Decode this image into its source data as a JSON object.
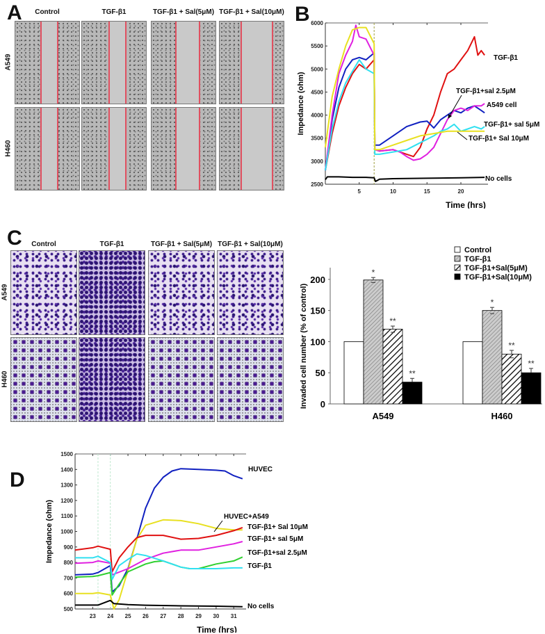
{
  "panels": {
    "a": {
      "letter": "A",
      "columns": [
        "Control",
        "TGF-β1",
        "TGF-β1 + Sal(5μM)",
        "TGF-β1 + Sal(10μM)"
      ],
      "rows": [
        "A549",
        "H460"
      ]
    },
    "b": {
      "letter": "B"
    },
    "c": {
      "letter": "C",
      "columns": [
        "Control",
        "TGF-β1",
        "TGF-β1 + Sal(5μM)",
        "TGF-β1 + Sal(10μM)"
      ],
      "rows": [
        "A549",
        "H460"
      ]
    },
    "d": {
      "letter": "D"
    }
  },
  "colors": {
    "red": "#e01010",
    "blue": "#1020c0",
    "magenta": "#e020e0",
    "cyan": "#30e0f0",
    "yellow": "#e8e020",
    "green": "#30d030",
    "black": "#000000"
  },
  "chart_data": [
    {
      "id": "B",
      "type": "line",
      "xlabel": "Time (hrs)",
      "ylabel": "Impedance (ohm)",
      "xlim": [
        0,
        24
      ],
      "ylim": [
        2500,
        6000
      ],
      "xticks": [
        5,
        10,
        15,
        20
      ],
      "yticks": [
        2500,
        3000,
        3500,
        4000,
        4500,
        5000,
        5500,
        6000
      ],
      "series": [
        {
          "name": "TGF-β1",
          "color": "#e01010",
          "x": [
            0,
            1,
            2,
            3,
            4,
            5,
            6,
            7.2,
            7.3,
            8,
            10,
            12,
            13,
            14,
            15,
            16,
            17,
            18,
            19,
            20,
            21,
            22,
            22.5,
            23,
            23.5
          ],
          "y": [
            2800,
            3600,
            4200,
            4600,
            4900,
            5100,
            5000,
            5200,
            3250,
            3220,
            3250,
            3150,
            3100,
            3300,
            3700,
            4000,
            4500,
            4900,
            5000,
            5200,
            5400,
            5700,
            5300,
            5400,
            5300
          ]
        },
        {
          "name": "TGF-β1+sal 2.5μM",
          "color": "#1020c0",
          "x": [
            0,
            1,
            2,
            3,
            4,
            5,
            6,
            7.2,
            7.3,
            8,
            10,
            12,
            14,
            15,
            15.8,
            16,
            17,
            18,
            19,
            20,
            21,
            22,
            23,
            23.5
          ],
          "y": [
            2800,
            3900,
            4600,
            5000,
            5200,
            5250,
            5200,
            5350,
            3350,
            3350,
            3550,
            3750,
            3850,
            3870,
            3750,
            3720,
            3900,
            4000,
            4100,
            4050,
            4150,
            4200,
            4100,
            4050
          ]
        },
        {
          "name": "A549 cell",
          "color": "#e020e0",
          "x": [
            0,
            1,
            2,
            3,
            4,
            4.5,
            5,
            6,
            7.2,
            7.3,
            8,
            10,
            11,
            12,
            13,
            14,
            15,
            16,
            17,
            18,
            19,
            20,
            21,
            22,
            23,
            23.5
          ],
          "y": [
            2800,
            4000,
            4900,
            5300,
            5600,
            5950,
            5700,
            5650,
            5300,
            3250,
            3220,
            3250,
            3200,
            3100,
            3020,
            3050,
            3150,
            3300,
            3600,
            3900,
            4100,
            4150,
            4100,
            4200,
            4200,
            4250
          ]
        },
        {
          "name": "TGF-β1+ sal 5μM",
          "color": "#30e0f0",
          "x": [
            0,
            1,
            2,
            3,
            4,
            5,
            6,
            7.2,
            7.3,
            8,
            10,
            12,
            14,
            16,
            17,
            18,
            19,
            20,
            21,
            22,
            23,
            23.5
          ],
          "y": [
            2800,
            3700,
            4300,
            4700,
            4950,
            5200,
            5000,
            4900,
            3150,
            3150,
            3200,
            3250,
            3400,
            3550,
            3650,
            3700,
            3800,
            3650,
            3700,
            3750,
            3700,
            3750
          ]
        },
        {
          "name": "TGF-β1+ Sal 10μM",
          "color": "#e8e020",
          "x": [
            0,
            1,
            2,
            3,
            4,
            5,
            6,
            7.2,
            7.3,
            8,
            10,
            12,
            14,
            16,
            18,
            20,
            22,
            23.5
          ],
          "y": [
            3300,
            4400,
            5000,
            5500,
            5850,
            5900,
            5900,
            5550,
            3250,
            3250,
            3350,
            3450,
            3550,
            3600,
            3650,
            3650,
            3650,
            3650
          ]
        },
        {
          "name": "No cells",
          "color": "#000000",
          "x": [
            0,
            0.3,
            2,
            4,
            6,
            7.2,
            7.4,
            8,
            10,
            15,
            20,
            23.5
          ],
          "y": [
            2600,
            2660,
            2660,
            2650,
            2650,
            2640,
            2560,
            2610,
            2620,
            2630,
            2640,
            2650
          ]
        }
      ],
      "annotations": [
        "TGF-β1",
        "TGF-β1+sal 2.5μM",
        "A549 cell",
        "TGF-β1+ sal 5μM",
        "TGF-β1+ Sal 10μM",
        "No cells"
      ]
    },
    {
      "id": "C",
      "type": "bar",
      "ylabel": "Invaded cell number (% of control)",
      "ylim": [
        0,
        230
      ],
      "yticks": [
        0,
        50,
        100,
        150,
        200
      ],
      "categories": [
        "A549",
        "H460"
      ],
      "legend": "top-right",
      "series": [
        {
          "name": "Control",
          "values": [
            100,
            100
          ],
          "errors": [
            0,
            0
          ],
          "sig": [
            "",
            ""
          ]
        },
        {
          "name": "TGF-β1",
          "values": [
            199,
            150
          ],
          "errors": [
            4,
            5
          ],
          "sig": [
            "*",
            "*"
          ]
        },
        {
          "name": "TGF-β1+Sal(5μM)",
          "values": [
            120,
            80
          ],
          "errors": [
            5,
            6
          ],
          "sig": [
            "**",
            "**"
          ]
        },
        {
          "name": "TGF-β1+Sal(10μM)",
          "values": [
            35,
            50
          ],
          "errors": [
            6,
            7
          ],
          "sig": [
            "**",
            "**"
          ]
        }
      ]
    },
    {
      "id": "D",
      "type": "line",
      "xlabel": "Time (hrs)",
      "ylabel": "Impedance (ohm)",
      "xlim": [
        22,
        31.7
      ],
      "ylim": [
        500,
        1500
      ],
      "xticks": [
        23,
        24,
        25,
        26,
        27,
        28,
        29,
        30,
        31
      ],
      "yticks": [
        500,
        600,
        700,
        800,
        900,
        1000,
        1100,
        1200,
        1300,
        1400,
        1500
      ],
      "series": [
        {
          "name": "HUVEC",
          "color": "#1020c0",
          "x": [
            22,
            23,
            23.3,
            24,
            24.1,
            24.5,
            25,
            25.5,
            26,
            26.5,
            27,
            27.5,
            28,
            29,
            30,
            30.5,
            31,
            31.5
          ],
          "y": [
            720,
            725,
            735,
            780,
            610,
            650,
            760,
            950,
            1150,
            1280,
            1350,
            1390,
            1405,
            1400,
            1395,
            1390,
            1360,
            1340
          ]
        },
        {
          "name": "HUVEC+A549",
          "color": "#e8e020",
          "x": [
            22,
            23,
            23.3,
            24,
            24.2,
            24.5,
            25,
            25.5,
            26,
            27,
            28,
            29,
            30,
            31,
            31.5
          ],
          "y": [
            600,
            600,
            605,
            590,
            500,
            560,
            750,
            950,
            1040,
            1075,
            1070,
            1050,
            1020,
            1010,
            1010
          ]
        },
        {
          "name": "TGF-β1+ Sal 10μM",
          "color": "#e01010",
          "x": [
            22,
            23,
            23.3,
            24,
            24.1,
            24.5,
            25,
            25.5,
            26,
            27,
            28,
            29,
            30,
            31,
            31.5
          ],
          "y": [
            880,
            895,
            905,
            885,
            740,
            830,
            900,
            960,
            975,
            975,
            950,
            955,
            975,
            1005,
            1025
          ]
        },
        {
          "name": "TGF-β1+ sal 5μM",
          "color": "#e020e0",
          "x": [
            22,
            23,
            23.3,
            24,
            24.1,
            25,
            26,
            27,
            28,
            29,
            30,
            31,
            31.5
          ],
          "y": [
            795,
            800,
            810,
            795,
            720,
            760,
            820,
            860,
            880,
            880,
            900,
            920,
            935
          ]
        },
        {
          "name": "TGF-β1+sal 2.5μM",
          "color": "#30d030",
          "x": [
            22,
            23,
            23.3,
            24,
            24.1,
            24.5,
            25,
            26,
            26.5,
            27,
            28,
            28.5,
            29,
            30,
            31,
            31.5
          ],
          "y": [
            705,
            710,
            715,
            735,
            590,
            660,
            740,
            790,
            805,
            810,
            770,
            760,
            760,
            790,
            810,
            835
          ]
        },
        {
          "name": "TGF-β1",
          "color": "#30e0f0",
          "x": [
            22,
            23,
            23.3,
            24,
            24.1,
            24.5,
            25,
            25.5,
            26,
            27,
            28,
            28.5,
            29,
            30,
            31,
            31.5
          ],
          "y": [
            830,
            830,
            840,
            800,
            690,
            780,
            820,
            855,
            845,
            810,
            770,
            760,
            760,
            760,
            765,
            765
          ]
        },
        {
          "name": "No cells",
          "color": "#000000",
          "x": [
            22,
            23,
            23.3,
            24,
            24.2,
            25,
            26,
            28,
            30,
            31.5
          ],
          "y": [
            525,
            525,
            525,
            555,
            535,
            528,
            524,
            520,
            518,
            515
          ]
        }
      ],
      "annotations": [
        "HUVEC",
        "HUVEC+A549",
        "TGF-β1+ Sal 10μM",
        "TGF-β1+ sal 5μM",
        "TGF-β1+sal 2.5μM",
        "TGF-β1",
        "No cells"
      ]
    }
  ]
}
